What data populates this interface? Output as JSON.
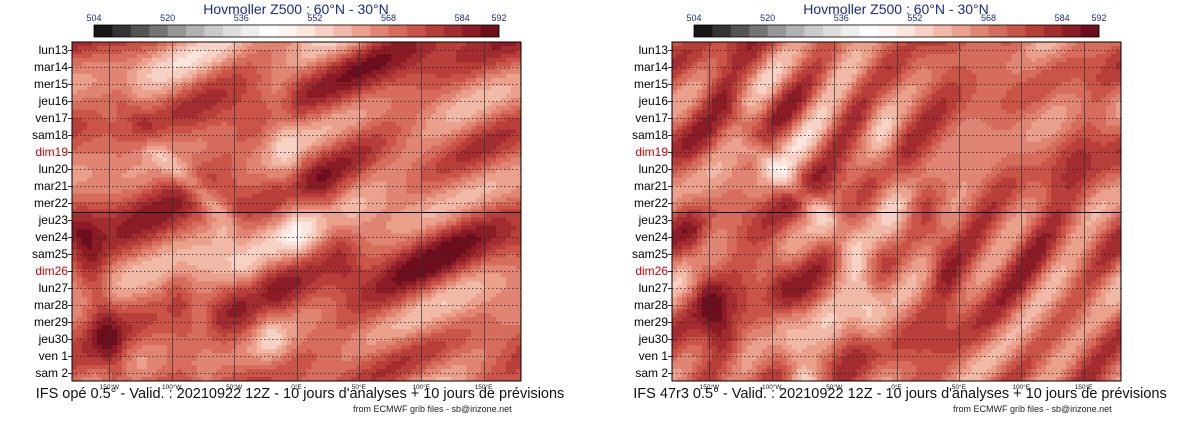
{
  "chart_data": [
    {
      "type": "heatmap",
      "title": "Hovmoller Z500 : 60°N - 30°N",
      "caption": "IFS opé 0.5° - Valid. : 20210922 12Z - 10 jours d'analyses + 10 jours de prévisions",
      "credit": "from ECMWF grib files - sb@irizone.net",
      "colorbar": {
        "ticks": [
          504,
          520,
          536,
          552,
          568,
          584,
          592
        ],
        "min": 504,
        "max": 592,
        "step": 4,
        "colors": [
          "#161616",
          "#343434",
          "#545454",
          "#747474",
          "#969696",
          "#b2b2b2",
          "#cacaca",
          "#dedede",
          "#eeeeee",
          "#ffffff",
          "#fef4f1",
          "#fbe6dd",
          "#f7d1c4",
          "#f1b9a8",
          "#eba08c",
          "#e08573",
          "#d66c5c",
          "#cb5449",
          "#b83e3a",
          "#a32c30",
          "#8b1c26",
          "#6c0e1c"
        ]
      },
      "y_labels": [
        {
          "text": "lun13",
          "color": "#000000"
        },
        {
          "text": "mar14",
          "color": "#000000"
        },
        {
          "text": "mer15",
          "color": "#000000"
        },
        {
          "text": "jeu16",
          "color": "#000000"
        },
        {
          "text": "ven17",
          "color": "#000000"
        },
        {
          "text": "sam18",
          "color": "#000000"
        },
        {
          "text": "dim19",
          "color": "#cc0000"
        },
        {
          "text": "lun20",
          "color": "#000000"
        },
        {
          "text": "mar21",
          "color": "#000000"
        },
        {
          "text": "mer22",
          "color": "#000000"
        },
        {
          "text": "jeu23",
          "color": "#000000"
        },
        {
          "text": "ven24",
          "color": "#000000"
        },
        {
          "text": "sam25",
          "color": "#000000"
        },
        {
          "text": "dim26",
          "color": "#cc0000"
        },
        {
          "text": "lun27",
          "color": "#000000"
        },
        {
          "text": "mar28",
          "color": "#000000"
        },
        {
          "text": "mer29",
          "color": "#000000"
        },
        {
          "text": "jeu30",
          "color": "#000000"
        },
        {
          "text": "ven 1",
          "color": "#000000"
        },
        {
          "text": "sam 2",
          "color": "#000000"
        }
      ],
      "analysis_split_label": "jeu23",
      "x_ticks": [
        {
          "label": "150°W",
          "lon": -150
        },
        {
          "label": "100°W",
          "lon": -100
        },
        {
          "label": "50°W",
          "lon": -50
        },
        {
          "label": "0°E",
          "lon": 0
        },
        {
          "label": "50°E",
          "lon": 50
        },
        {
          "label": "100°E",
          "lon": 100
        },
        {
          "label": "150°E",
          "lon": 150
        }
      ],
      "x_range": [
        -180,
        180
      ],
      "field_features": [
        {
          "kind": "ridge",
          "lon_start": -140,
          "lon_end": -100,
          "day_start": 3,
          "day_end": 6,
          "value": 578
        },
        {
          "kind": "ridge",
          "lon_start": -170,
          "lon_end": -145,
          "day_start": 11,
          "day_end": 19,
          "value": 584
        },
        {
          "kind": "ridge",
          "lon_start": -95,
          "lon_end": -70,
          "day_start": 14,
          "day_end": 19,
          "value": 580
        },
        {
          "kind": "ridge",
          "lon_start": -50,
          "lon_end": -30,
          "day_start": 10,
          "day_end": 15,
          "value": 578
        },
        {
          "kind": "ridge",
          "lon_start": 25,
          "lon_end": 40,
          "day_start": 9,
          "day_end": 13,
          "value": 578
        },
        {
          "kind": "trough",
          "lon_start": -110,
          "lon_end": -55,
          "day_start": 6,
          "day_end": 10,
          "value": 556
        },
        {
          "kind": "trough",
          "lon_start": -80,
          "lon_end": -70,
          "day_start": 16,
          "day_end": 20,
          "value": 556
        },
        {
          "kind": "trough",
          "lon_start": -40,
          "lon_end": -20,
          "day_start": 13,
          "day_end": 17,
          "value": 558
        },
        {
          "kind": "trough",
          "lon_start": -15,
          "lon_end": 0,
          "day_start": 3,
          "day_end": 11,
          "value": 562
        }
      ]
    },
    {
      "type": "heatmap",
      "title": "Hovmoller Z500 : 60°N - 30°N",
      "caption": "IFS 47r3 0.5° - Valid. : 20210922 12Z - 10 jours d'analyses + 10 jours de prévisions",
      "credit": "from ECMWF grib files - sb@irizone.net",
      "colorbar": {
        "ticks": [
          504,
          520,
          536,
          552,
          568,
          584,
          592
        ],
        "min": 504,
        "max": 592,
        "step": 4,
        "colors": [
          "#161616",
          "#343434",
          "#545454",
          "#747474",
          "#969696",
          "#b2b2b2",
          "#cacaca",
          "#dedede",
          "#eeeeee",
          "#ffffff",
          "#fef4f1",
          "#fbe6dd",
          "#f7d1c4",
          "#f1b9a8",
          "#eba08c",
          "#e08573",
          "#d66c5c",
          "#cb5449",
          "#b83e3a",
          "#a32c30",
          "#8b1c26",
          "#6c0e1c"
        ]
      },
      "y_labels": [
        {
          "text": "lun13",
          "color": "#000000"
        },
        {
          "text": "mar14",
          "color": "#000000"
        },
        {
          "text": "mer15",
          "color": "#000000"
        },
        {
          "text": "jeu16",
          "color": "#000000"
        },
        {
          "text": "ven17",
          "color": "#000000"
        },
        {
          "text": "sam18",
          "color": "#000000"
        },
        {
          "text": "dim19",
          "color": "#cc0000"
        },
        {
          "text": "lun20",
          "color": "#000000"
        },
        {
          "text": "mar21",
          "color": "#000000"
        },
        {
          "text": "mer22",
          "color": "#000000"
        },
        {
          "text": "jeu23",
          "color": "#000000"
        },
        {
          "text": "ven24",
          "color": "#000000"
        },
        {
          "text": "sam25",
          "color": "#000000"
        },
        {
          "text": "dim26",
          "color": "#cc0000"
        },
        {
          "text": "lun27",
          "color": "#000000"
        },
        {
          "text": "mar28",
          "color": "#000000"
        },
        {
          "text": "mer29",
          "color": "#000000"
        },
        {
          "text": "jeu30",
          "color": "#000000"
        },
        {
          "text": "ven 1",
          "color": "#000000"
        },
        {
          "text": "sam 2",
          "color": "#000000"
        }
      ],
      "analysis_split_label": "jeu23",
      "x_ticks": [
        {
          "label": "150°W",
          "lon": -150
        },
        {
          "label": "100°W",
          "lon": -100
        },
        {
          "label": "50°W",
          "lon": -50
        },
        {
          "label": "0°E",
          "lon": 0
        },
        {
          "label": "50°E",
          "lon": 50
        },
        {
          "label": "100°E",
          "lon": 100
        },
        {
          "label": "150°E",
          "lon": 150
        }
      ],
      "x_range": [
        -180,
        180
      ],
      "field_features": [
        {
          "kind": "ridge",
          "lon_start": -140,
          "lon_end": -100,
          "day_start": 3,
          "day_end": 6,
          "value": 578
        },
        {
          "kind": "ridge",
          "lon_start": -165,
          "lon_end": -140,
          "day_start": 11,
          "day_end": 17,
          "value": 582
        },
        {
          "kind": "ridge",
          "lon_start": -95,
          "lon_end": -75,
          "day_start": 13,
          "day_end": 18,
          "value": 580
        },
        {
          "kind": "ridge",
          "lon_start": 25,
          "lon_end": 40,
          "day_start": 9,
          "day_end": 13,
          "value": 580
        },
        {
          "kind": "trough",
          "lon_start": -110,
          "lon_end": -55,
          "day_start": 6,
          "day_end": 10,
          "value": 556
        },
        {
          "kind": "trough",
          "lon_start": -85,
          "lon_end": -72,
          "day_start": 16,
          "day_end": 20,
          "value": 554
        },
        {
          "kind": "trough",
          "lon_start": -35,
          "lon_end": -20,
          "day_start": 12,
          "day_end": 16,
          "value": 558
        },
        {
          "kind": "trough",
          "lon_start": -15,
          "lon_end": 0,
          "day_start": 3,
          "day_end": 11,
          "value": 562
        }
      ]
    }
  ]
}
